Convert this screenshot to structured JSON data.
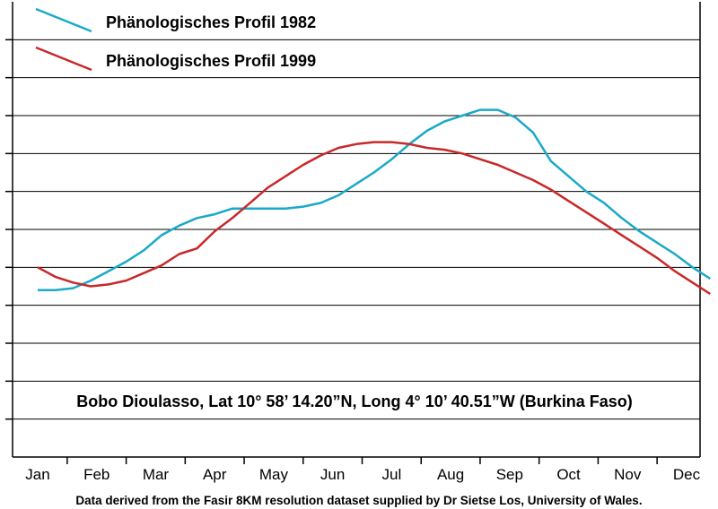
{
  "chart_data": {
    "type": "line",
    "title": "",
    "xlabel": "",
    "ylabel": "",
    "categories": [
      "Jan",
      "Feb",
      "Mar",
      "Apr",
      "May",
      "Jun",
      "Jul",
      "Aug",
      "Sep",
      "Oct",
      "Nov",
      "Dec"
    ],
    "ylim": [
      0,
      12
    ],
    "grid": true,
    "legend": "top-left",
    "series": [
      {
        "name": "Phänologisches Profil 1982",
        "color": "#1aa9c8",
        "x": [
          1.0,
          1.3,
          1.6,
          1.9,
          2.2,
          2.5,
          2.8,
          3.1,
          3.4,
          3.7,
          4.0,
          4.3,
          4.6,
          4.9,
          5.2,
          5.5,
          5.8,
          6.1,
          6.4,
          6.7,
          7.0,
          7.3,
          7.6,
          7.9,
          8.2,
          8.5,
          8.8,
          9.1,
          9.4,
          9.7,
          10.0,
          10.3,
          10.6,
          10.9,
          11.2,
          11.5,
          11.8,
          12.1,
          12.4
        ],
        "values": [
          4.4,
          4.4,
          4.45,
          4.65,
          4.9,
          5.15,
          5.45,
          5.85,
          6.1,
          6.3,
          6.4,
          6.55,
          6.55,
          6.55,
          6.55,
          6.6,
          6.7,
          6.9,
          7.2,
          7.5,
          7.85,
          8.25,
          8.6,
          8.85,
          9.0,
          9.15,
          9.15,
          8.95,
          8.55,
          7.8,
          7.4,
          7.0,
          6.7,
          6.3,
          5.95,
          5.65,
          5.35,
          5.0,
          4.7
        ],
        "style": "solid"
      },
      {
        "name": "Phänologisches Profil 1999",
        "color": "#c8282a",
        "x": [
          1.0,
          1.3,
          1.6,
          1.9,
          2.2,
          2.5,
          2.8,
          3.1,
          3.4,
          3.7,
          4.0,
          4.3,
          4.6,
          4.9,
          5.2,
          5.5,
          5.8,
          6.1,
          6.4,
          6.7,
          7.0,
          7.3,
          7.6,
          7.9,
          8.2,
          8.5,
          8.8,
          9.1,
          9.4,
          9.7,
          10.0,
          10.3,
          10.6,
          10.9,
          11.2,
          11.5,
          11.8,
          12.1,
          12.4
        ],
        "values": [
          5.0,
          4.75,
          4.6,
          4.5,
          4.55,
          4.65,
          4.85,
          5.05,
          5.35,
          5.5,
          5.95,
          6.3,
          6.7,
          7.1,
          7.4,
          7.7,
          7.95,
          8.15,
          8.25,
          8.3,
          8.3,
          8.25,
          8.15,
          8.1,
          8.0,
          7.85,
          7.7,
          7.5,
          7.3,
          7.05,
          6.75,
          6.45,
          6.15,
          5.85,
          5.55,
          5.25,
          4.9,
          4.6,
          4.3
        ],
        "style": "solid"
      }
    ],
    "annotation": "Bobo Dioulasso, Lat 10° 58’ 14.20”N, Long 4° 10’ 40.51”W (Burkina Faso)",
    "caption": "Data derived from the Fasir 8KM resolution dataset supplied by Dr Sietse Los, University of Wales."
  }
}
